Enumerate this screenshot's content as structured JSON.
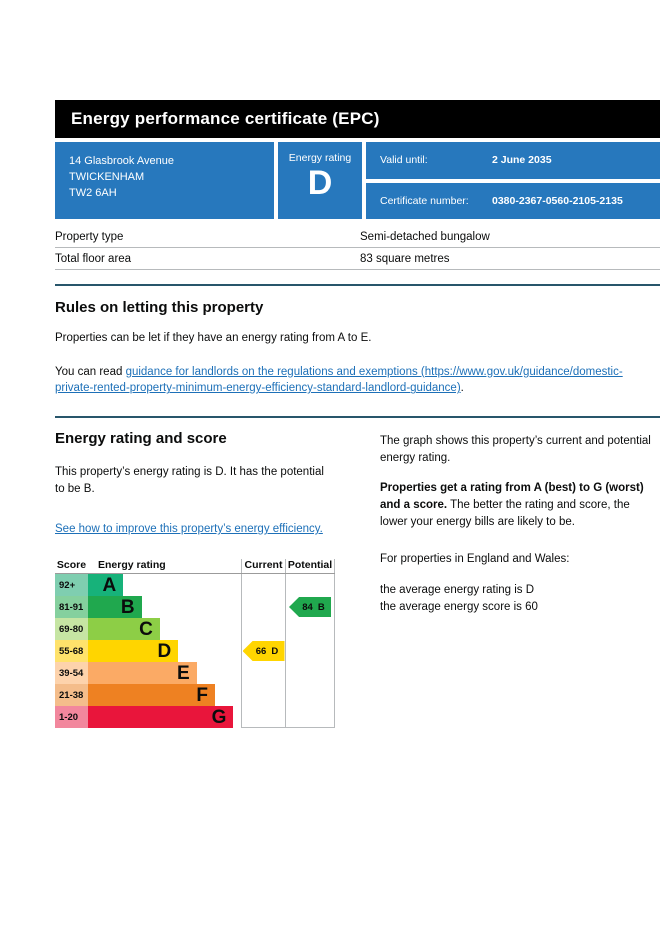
{
  "header": {
    "title": "Energy performance certificate (EPC)"
  },
  "summary": {
    "address_lines": [
      "14 Glasbrook Avenue",
      "TWICKENHAM",
      "TW2 6AH"
    ],
    "energy_rating_label": "Energy rating",
    "energy_rating": "D",
    "valid_until_label": "Valid until:",
    "valid_until_value": "2 June 2035",
    "certificate_number_label": "Certificate number:",
    "certificate_number_value": "0380-2367-0560-2105-2135",
    "box_color": "#2778bd"
  },
  "property_facts": {
    "rows": [
      {
        "label": "Property type",
        "value": "Semi-detached bungalow"
      },
      {
        "label": "Total floor area",
        "value": "83 square metres"
      }
    ]
  },
  "rules": {
    "heading": "Rules on letting this property",
    "para1": "Properties can be let if they have an energy rating from A to E.",
    "para2_prefix": "You can read ",
    "link_text": "guidance for landlords on the regulations and exemptions (https://www.gov.uk/guidance/domestic-private-rented-property-minimum-energy-efficiency-standard-landlord-guidance)",
    "para2_suffix": "."
  },
  "energy_section": {
    "heading": "Energy rating and score",
    "left_para": "This property’s energy rating is D. It has the potential to be B.",
    "improve_link_text": "See how to improve this property’s energy efficiency.",
    "right_para1": "The graph shows this property’s current and potential energy rating.",
    "right_para2_bold": "Properties get a rating from A (best) to G (worst) and a score.",
    "right_para2_rest": " The better the rating and score, the lower your energy bills are likely to be.",
    "right_para3": "For properties in England and Wales:",
    "avg_rating_line": "the average energy rating is D",
    "avg_score_line": "the average energy score is 60"
  },
  "chart_data": {
    "type": "bar",
    "title": "EPC energy rating bands with current and potential scores",
    "columns": [
      "Score",
      "Energy rating",
      "Current",
      "Potential"
    ],
    "bands": [
      {
        "band": "A",
        "score_range": "92+",
        "color": "#17b27a",
        "light_color": "#7fceb0",
        "width_pct": 23
      },
      {
        "band": "B",
        "score_range": "81-91",
        "color": "#20a84e",
        "light_color": "#85d09e",
        "width_pct": 35
      },
      {
        "band": "C",
        "score_range": "69-80",
        "color": "#8dce46",
        "light_color": "#c6e5a3",
        "width_pct": 47
      },
      {
        "band": "D",
        "score_range": "55-68",
        "color": "#ffd500",
        "light_color": "#ffe26b",
        "width_pct": 59
      },
      {
        "band": "E",
        "score_range": "39-54",
        "color": "#fbaa65",
        "light_color": "#fdd3ac",
        "width_pct": 71
      },
      {
        "band": "F",
        "score_range": "21-38",
        "color": "#ee8122",
        "light_color": "#f4bd8b",
        "width_pct": 83
      },
      {
        "band": "G",
        "score_range": "1-20",
        "color": "#e9153b",
        "light_color": "#f2879d",
        "width_pct": 95
      }
    ],
    "current": {
      "score": "66",
      "band": "D",
      "color": "#ffd500",
      "row_index": 3
    },
    "potential": {
      "score": "84",
      "band": "B",
      "color": "#20a84e",
      "row_index": 1
    }
  }
}
